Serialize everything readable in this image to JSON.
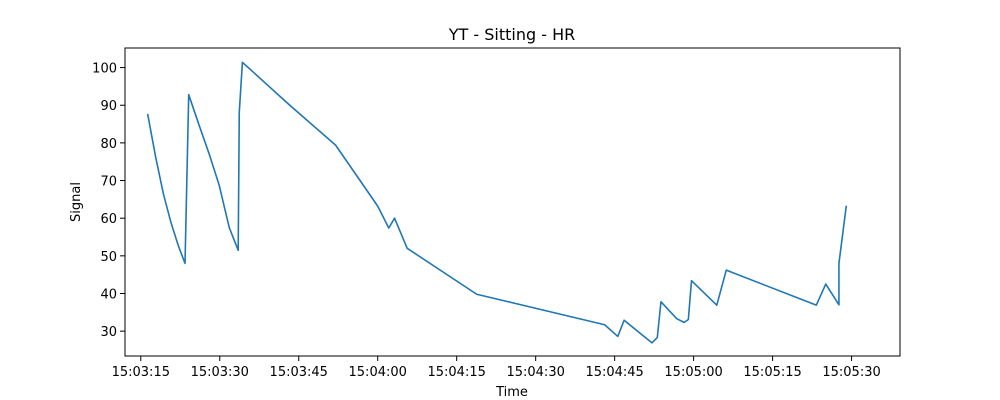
{
  "chart_data": {
    "type": "line",
    "title": "YT - Sitting - HR",
    "xlabel": "Time",
    "ylabel": "Signal",
    "xlim_seconds": [
      0,
      147.2
    ],
    "ylim": [
      23.4,
      105.2
    ],
    "grid": false,
    "x_ticks": [
      {
        "t": 3.0,
        "label": "15:03:15"
      },
      {
        "t": 18.0,
        "label": "15:03:30"
      },
      {
        "t": 33.0,
        "label": "15:03:45"
      },
      {
        "t": 48.0,
        "label": "15:04:00"
      },
      {
        "t": 63.0,
        "label": "15:04:15"
      },
      {
        "t": 78.0,
        "label": "15:04:30"
      },
      {
        "t": 93.0,
        "label": "15:04:45"
      },
      {
        "t": 108.0,
        "label": "15:05:00"
      },
      {
        "t": 123.0,
        "label": "15:05:15"
      },
      {
        "t": 138.0,
        "label": "15:05:30"
      }
    ],
    "y_ticks": [
      30,
      40,
      50,
      60,
      70,
      80,
      90,
      100
    ],
    "series": [
      {
        "name": "HR",
        "color": "#1f77b4",
        "x": [
          4.3,
          5.8,
          7.3,
          8.7,
          10.1,
          11.4,
          12.1,
          14.0,
          16.0,
          17.9,
          19.8,
          21.5,
          21.7,
          22.3,
          31.3,
          40.0,
          48.0,
          50.1,
          51.2,
          53.6,
          66.8,
          91.1,
          93.6,
          94.8,
          97.6,
          100.1,
          101.1,
          101.8,
          104.8,
          106.2,
          107.0,
          107.6,
          112.4,
          114.2,
          131.3,
          133.1,
          135.6,
          135.6,
          137.0
        ],
        "values": [
          87.7,
          76.4,
          66.4,
          59.0,
          52.8,
          48.0,
          92.8,
          85.0,
          77.0,
          68.7,
          57.5,
          51.5,
          88.0,
          101.4,
          90.0,
          79.4,
          63.2,
          57.4,
          60.0,
          52.0,
          39.8,
          31.7,
          28.6,
          32.9,
          29.7,
          26.9,
          28.3,
          37.8,
          33.3,
          32.3,
          33.1,
          43.4,
          36.9,
          46.2,
          36.9,
          42.5,
          37.0,
          48.0,
          63.3
        ]
      }
    ]
  }
}
